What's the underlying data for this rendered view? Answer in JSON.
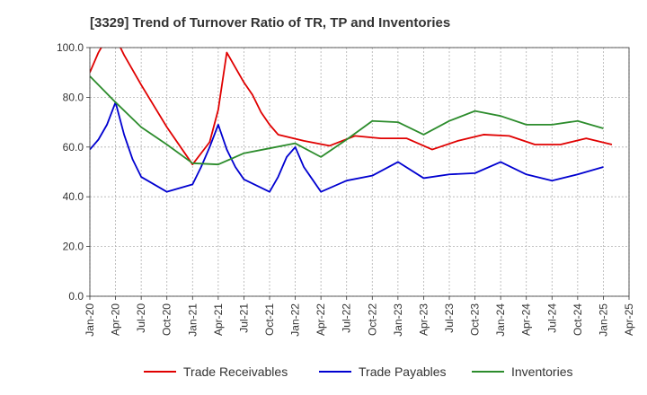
{
  "chart_data": {
    "type": "line",
    "title": "[3329]  Trend of Turnover Ratio of TR, TP and Inventories",
    "xlabel": "",
    "ylabel": "",
    "ylim": [
      0,
      100
    ],
    "y_ticks": [
      "0.0",
      "20.0",
      "40.0",
      "60.0",
      "80.0",
      "100.0"
    ],
    "y_tick_values": [
      0,
      20,
      40,
      60,
      80,
      100
    ],
    "x_ticks": [
      "Jan-20",
      "Apr-20",
      "Jul-20",
      "Oct-20",
      "Jan-21",
      "Apr-21",
      "Jul-21",
      "Oct-21",
      "Jan-22",
      "Apr-22",
      "Jul-22",
      "Oct-22",
      "Jan-23",
      "Apr-23",
      "Jul-23",
      "Oct-23",
      "Jan-24",
      "Apr-24",
      "Jul-24",
      "Oct-24",
      "Jan-25",
      "Apr-25"
    ],
    "grid": true,
    "legend_position": "bottom",
    "series": [
      {
        "name": "Trade Receivables",
        "color": "#e00000",
        "points": [
          [
            0,
            90
          ],
          [
            1,
            98
          ],
          [
            2,
            104
          ],
          [
            3,
            104
          ],
          [
            4,
            97
          ],
          [
            6,
            85
          ],
          [
            9,
            68
          ],
          [
            12,
            53
          ],
          [
            14,
            62
          ],
          [
            15,
            75
          ],
          [
            16,
            98
          ],
          [
            17,
            92
          ],
          [
            18,
            86
          ],
          [
            19,
            81
          ],
          [
            20,
            74
          ],
          [
            21,
            69
          ],
          [
            22,
            65
          ],
          [
            25,
            62.5
          ],
          [
            28,
            60.5
          ],
          [
            31,
            64.5
          ],
          [
            34,
            63.5
          ],
          [
            37,
            63.5
          ],
          [
            40,
            59
          ],
          [
            43,
            62.5
          ],
          [
            46,
            65
          ],
          [
            49,
            64.5
          ],
          [
            52,
            61
          ],
          [
            55,
            61
          ],
          [
            58,
            63.5
          ],
          [
            61,
            61
          ]
        ]
      },
      {
        "name": "Trade Payables",
        "color": "#0000d0",
        "points": [
          [
            0,
            59
          ],
          [
            1,
            63
          ],
          [
            2,
            69
          ],
          [
            3,
            78
          ],
          [
            4,
            65
          ],
          [
            5,
            55
          ],
          [
            6,
            48
          ],
          [
            9,
            42
          ],
          [
            12,
            45
          ],
          [
            13,
            52
          ],
          [
            14,
            60
          ],
          [
            15,
            69
          ],
          [
            16,
            59
          ],
          [
            17,
            52
          ],
          [
            18,
            47
          ],
          [
            21,
            42
          ],
          [
            22,
            48
          ],
          [
            23,
            56
          ],
          [
            24,
            60
          ],
          [
            25,
            52
          ],
          [
            26,
            47
          ],
          [
            27,
            42
          ],
          [
            30,
            46.5
          ],
          [
            33,
            48.5
          ],
          [
            36,
            54
          ],
          [
            39,
            47.5
          ],
          [
            42,
            49
          ],
          [
            45,
            49.5
          ],
          [
            48,
            54
          ],
          [
            51,
            49
          ],
          [
            54,
            46.5
          ],
          [
            57,
            49
          ],
          [
            60,
            52
          ]
        ]
      },
      {
        "name": "Inventories",
        "color": "#2c8c2c",
        "points": [
          [
            0,
            88.5
          ],
          [
            3,
            78
          ],
          [
            6,
            68
          ],
          [
            9,
            61
          ],
          [
            12,
            53.5
          ],
          [
            15,
            53
          ],
          [
            18,
            57.5
          ],
          [
            21,
            59.5
          ],
          [
            24,
            61.5
          ],
          [
            27,
            56
          ],
          [
            30,
            63
          ],
          [
            33,
            70.5
          ],
          [
            36,
            70
          ],
          [
            39,
            65
          ],
          [
            42,
            70.5
          ],
          [
            45,
            74.5
          ],
          [
            48,
            72.5
          ],
          [
            51,
            69
          ],
          [
            54,
            69
          ],
          [
            57,
            70.5
          ],
          [
            60,
            67.5
          ]
        ]
      }
    ]
  }
}
